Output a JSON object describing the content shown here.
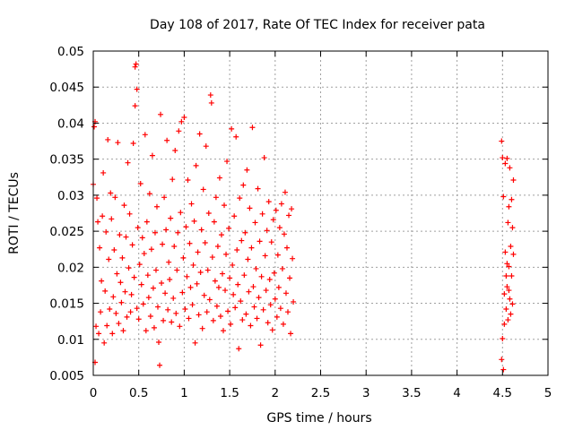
{
  "chart_data": {
    "type": "scatter",
    "title": "Day 108 of 2017, Rate Of TEC Index for receiver pata",
    "xlabel": "GPS time / hours",
    "ylabel": "ROTI / TECUs",
    "xlim": [
      0,
      5
    ],
    "ylim": [
      0.005,
      0.05
    ],
    "grid": true,
    "marker": "+",
    "marker_color": "#ff0000",
    "x_ticks": [
      0,
      0.5,
      1,
      1.5,
      2,
      2.5,
      3,
      3.5,
      4,
      4.5,
      5
    ],
    "x_tick_labels": [
      "0",
      "0.5",
      "1",
      "1.5",
      "2",
      "2.5",
      "3",
      "3.5",
      "4",
      "4.5",
      "5"
    ],
    "y_ticks": [
      0.005,
      0.01,
      0.015,
      0.02,
      0.025,
      0.03,
      0.035,
      0.04,
      0.045,
      0.05
    ],
    "y_tick_labels": [
      "0.005",
      "0.01",
      "0.015",
      "0.02",
      "0.025",
      "0.03",
      "0.035",
      "0.04",
      "0.045",
      "0.05"
    ],
    "series": [
      {
        "name": "ROTI",
        "points": [
          [
            0.0,
            0.0315
          ],
          [
            0.01,
            0.0395
          ],
          [
            0.02,
            0.0402
          ],
          [
            0.02,
            0.0068
          ],
          [
            0.03,
            0.0118
          ],
          [
            0.04,
            0.0296
          ],
          [
            0.05,
            0.0263
          ],
          [
            0.06,
            0.0108
          ],
          [
            0.07,
            0.0227
          ],
          [
            0.08,
            0.0138
          ],
          [
            0.09,
            0.0181
          ],
          [
            0.1,
            0.0271
          ],
          [
            0.11,
            0.0331
          ],
          [
            0.12,
            0.0095
          ],
          [
            0.13,
            0.0167
          ],
          [
            0.14,
            0.0249
          ],
          [
            0.15,
            0.0119
          ],
          [
            0.16,
            0.0377
          ],
          [
            0.17,
            0.0211
          ],
          [
            0.18,
            0.0142
          ],
          [
            0.19,
            0.0303
          ],
          [
            0.2,
            0.0267
          ],
          [
            0.21,
            0.0108
          ],
          [
            0.22,
            0.0159
          ],
          [
            0.23,
            0.0224
          ],
          [
            0.24,
            0.0297
          ],
          [
            0.25,
            0.0136
          ],
          [
            0.26,
            0.0191
          ],
          [
            0.27,
            0.0373
          ],
          [
            0.28,
            0.0122
          ],
          [
            0.29,
            0.0245
          ],
          [
            0.3,
            0.0179
          ],
          [
            0.31,
            0.0151
          ],
          [
            0.32,
            0.0213
          ],
          [
            0.33,
            0.0112
          ],
          [
            0.34,
            0.0286
          ],
          [
            0.35,
            0.0166
          ],
          [
            0.36,
            0.0242
          ],
          [
            0.37,
            0.0131
          ],
          [
            0.38,
            0.0345
          ],
          [
            0.39,
            0.0199
          ],
          [
            0.4,
            0.0274
          ],
          [
            0.41,
            0.0138
          ],
          [
            0.42,
            0.0162
          ],
          [
            0.43,
            0.0231
          ],
          [
            0.44,
            0.0372
          ],
          [
            0.45,
            0.0186
          ],
          [
            0.46,
            0.0424
          ],
          [
            0.46,
            0.0478
          ],
          [
            0.47,
            0.0482
          ],
          [
            0.48,
            0.0447
          ],
          [
            0.48,
            0.0143
          ],
          [
            0.49,
            0.0255
          ],
          [
            0.5,
            0.0128
          ],
          [
            0.51,
            0.0204
          ],
          [
            0.52,
            0.0316
          ],
          [
            0.53,
            0.0176
          ],
          [
            0.54,
            0.0241
          ],
          [
            0.55,
            0.0149
          ],
          [
            0.56,
            0.0219
          ],
          [
            0.57,
            0.0384
          ],
          [
            0.58,
            0.0112
          ],
          [
            0.59,
            0.0263
          ],
          [
            0.6,
            0.0189
          ],
          [
            0.61,
            0.0158
          ],
          [
            0.62,
            0.0302
          ],
          [
            0.63,
            0.0132
          ],
          [
            0.64,
            0.0225
          ],
          [
            0.65,
            0.0355
          ],
          [
            0.66,
            0.0171
          ],
          [
            0.67,
            0.0116
          ],
          [
            0.68,
            0.0248
          ],
          [
            0.69,
            0.0196
          ],
          [
            0.7,
            0.0284
          ],
          [
            0.71,
            0.0145
          ],
          [
            0.72,
            0.0096
          ],
          [
            0.73,
            0.0064
          ],
          [
            0.74,
            0.0412
          ],
          [
            0.75,
            0.0178
          ],
          [
            0.76,
            0.0232
          ],
          [
            0.77,
            0.0126
          ],
          [
            0.78,
            0.0297
          ],
          [
            0.79,
            0.0164
          ],
          [
            0.8,
            0.0252
          ],
          [
            0.81,
            0.0376
          ],
          [
            0.82,
            0.0141
          ],
          [
            0.83,
            0.0207
          ],
          [
            0.84,
            0.0183
          ],
          [
            0.85,
            0.0268
          ],
          [
            0.86,
            0.0124
          ],
          [
            0.87,
            0.0322
          ],
          [
            0.88,
            0.0157
          ],
          [
            0.89,
            0.0229
          ],
          [
            0.9,
            0.0362
          ],
          [
            0.91,
            0.0136
          ],
          [
            0.92,
            0.0196
          ],
          [
            0.93,
            0.0248
          ],
          [
            0.94,
            0.0389
          ],
          [
            0.95,
            0.0118
          ],
          [
            0.96,
            0.0276
          ],
          [
            0.97,
            0.0402
          ],
          [
            0.98,
            0.0165
          ],
          [
            0.99,
            0.0213
          ],
          [
            1.0,
            0.0408
          ],
          [
            1.01,
            0.0142
          ],
          [
            1.02,
            0.0256
          ],
          [
            1.03,
            0.0187
          ],
          [
            1.04,
            0.0321
          ],
          [
            1.05,
            0.0129
          ],
          [
            1.06,
            0.0233
          ],
          [
            1.07,
            0.0172
          ],
          [
            1.08,
            0.0288
          ],
          [
            1.09,
            0.0148
          ],
          [
            1.1,
            0.0203
          ],
          [
            1.11,
            0.0264
          ],
          [
            1.12,
            0.0095
          ],
          [
            1.13,
            0.0341
          ],
          [
            1.14,
            0.0177
          ],
          [
            1.15,
            0.0221
          ],
          [
            1.16,
            0.0134
          ],
          [
            1.17,
            0.0385
          ],
          [
            1.18,
            0.0193
          ],
          [
            1.19,
            0.0252
          ],
          [
            1.2,
            0.0115
          ],
          [
            1.21,
            0.0308
          ],
          [
            1.22,
            0.0161
          ],
          [
            1.23,
            0.0234
          ],
          [
            1.24,
            0.0368
          ],
          [
            1.25,
            0.0138
          ],
          [
            1.26,
            0.0196
          ],
          [
            1.27,
            0.0275
          ],
          [
            1.28,
            0.0155
          ],
          [
            1.29,
            0.0439
          ],
          [
            1.3,
            0.0428
          ],
          [
            1.31,
            0.0214
          ],
          [
            1.32,
            0.0126
          ],
          [
            1.33,
            0.0263
          ],
          [
            1.34,
            0.0181
          ],
          [
            1.35,
            0.0297
          ],
          [
            1.36,
            0.0146
          ],
          [
            1.37,
            0.0229
          ],
          [
            1.38,
            0.0172
          ],
          [
            1.39,
            0.0324
          ],
          [
            1.4,
            0.0132
          ],
          [
            1.41,
            0.0245
          ],
          [
            1.42,
            0.0191
          ],
          [
            1.43,
            0.0112
          ],
          [
            1.44,
            0.0286
          ],
          [
            1.45,
            0.0168
          ],
          [
            1.46,
            0.0218
          ],
          [
            1.47,
            0.0347
          ],
          [
            1.48,
            0.0139
          ],
          [
            1.49,
            0.0254
          ],
          [
            1.5,
            0.0185
          ],
          [
            1.51,
            0.0121
          ],
          [
            1.52,
            0.0392
          ],
          [
            1.53,
            0.0203
          ],
          [
            1.54,
            0.0162
          ],
          [
            1.55,
            0.0271
          ],
          [
            1.56,
            0.0144
          ],
          [
            1.57,
            0.0381
          ],
          [
            1.58,
            0.0224
          ],
          [
            1.59,
            0.0176
          ],
          [
            1.6,
            0.0087
          ],
          [
            1.61,
            0.0296
          ],
          [
            1.62,
            0.0153
          ],
          [
            1.63,
            0.0237
          ],
          [
            1.64,
            0.0127
          ],
          [
            1.65,
            0.0314
          ],
          [
            1.66,
            0.0189
          ],
          [
            1.67,
            0.0248
          ],
          [
            1.68,
            0.0135
          ],
          [
            1.69,
            0.0335
          ],
          [
            1.7,
            0.0211
          ],
          [
            1.71,
            0.0166
          ],
          [
            1.72,
            0.0282
          ],
          [
            1.73,
            0.0119
          ],
          [
            1.74,
            0.0227
          ],
          [
            1.75,
            0.0394
          ],
          [
            1.76,
            0.0173
          ],
          [
            1.77,
            0.0145
          ],
          [
            1.78,
            0.0262
          ],
          [
            1.79,
            0.0198
          ],
          [
            1.8,
            0.0129
          ],
          [
            1.81,
            0.0309
          ],
          [
            1.82,
            0.0158
          ],
          [
            1.83,
            0.0236
          ],
          [
            1.84,
            0.0092
          ],
          [
            1.85,
            0.0187
          ],
          [
            1.86,
            0.0274
          ],
          [
            1.87,
            0.0141
          ],
          [
            1.88,
            0.0352
          ],
          [
            1.89,
            0.0216
          ],
          [
            1.9,
            0.0168
          ],
          [
            1.91,
            0.0251
          ],
          [
            1.92,
            0.0123
          ],
          [
            1.93,
            0.0291
          ],
          [
            1.94,
            0.0183
          ],
          [
            1.95,
            0.0148
          ],
          [
            1.96,
            0.0235
          ],
          [
            1.97,
            0.0113
          ],
          [
            1.98,
            0.0266
          ],
          [
            1.99,
            0.0192
          ],
          [
            2.0,
            0.0156
          ],
          [
            2.01,
            0.0279
          ],
          [
            2.02,
            0.0131
          ],
          [
            2.03,
            0.0217
          ],
          [
            2.04,
            0.0172
          ],
          [
            2.05,
            0.0255
          ],
          [
            2.06,
            0.0143
          ],
          [
            2.07,
            0.0288
          ],
          [
            2.08,
            0.0198
          ],
          [
            2.09,
            0.0121
          ],
          [
            2.1,
            0.0246
          ],
          [
            2.11,
            0.0304
          ],
          [
            2.12,
            0.0164
          ],
          [
            2.13,
            0.0227
          ],
          [
            2.14,
            0.0138
          ],
          [
            2.15,
            0.0272
          ],
          [
            2.16,
            0.0185
          ],
          [
            2.17,
            0.0108
          ],
          [
            2.18,
            0.0281
          ],
          [
            2.19,
            0.0212
          ],
          [
            2.2,
            0.0152
          ],
          [
            4.49,
            0.0375
          ],
          [
            4.49,
            0.0072
          ],
          [
            4.5,
            0.0352
          ],
          [
            4.5,
            0.0101
          ],
          [
            4.51,
            0.0298
          ],
          [
            4.51,
            0.0058
          ],
          [
            4.52,
            0.0163
          ],
          [
            4.52,
            0.0121
          ],
          [
            4.53,
            0.0344
          ],
          [
            4.53,
            0.0221
          ],
          [
            4.54,
            0.0188
          ],
          [
            4.54,
            0.0142
          ],
          [
            4.55,
            0.0351
          ],
          [
            4.55,
            0.0173
          ],
          [
            4.56,
            0.0262
          ],
          [
            4.56,
            0.0127
          ],
          [
            4.57,
            0.0201
          ],
          [
            4.57,
            0.0284
          ],
          [
            4.58,
            0.0156
          ],
          [
            4.58,
            0.0338
          ],
          [
            4.59,
            0.0229
          ],
          [
            4.59,
            0.0135
          ],
          [
            4.6,
            0.0294
          ],
          [
            4.6,
            0.0188
          ],
          [
            4.61,
            0.0255
          ],
          [
            4.61,
            0.0149
          ],
          [
            4.62,
            0.0321
          ],
          [
            4.62,
            0.0218
          ],
          [
            4.55,
            0.0205
          ],
          [
            4.57,
            0.0168
          ]
        ]
      }
    ]
  }
}
